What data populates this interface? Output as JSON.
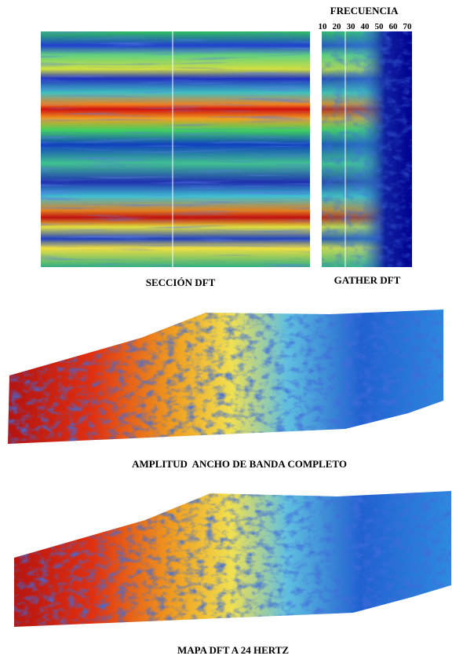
{
  "top": {
    "frequency_title": "FRECUENCIA",
    "frequency_ticks": [
      10,
      20,
      30,
      40,
      50,
      60,
      70
    ],
    "section_label": "SECCIÓN DFT",
    "gather_label": "GATHER DFT"
  },
  "maps": [
    {
      "label": "AMPLITUD  ANCHO DE BANDA COMPLETO"
    },
    {
      "label": "MAPA DFT A 24 HERTZ"
    }
  ]
}
